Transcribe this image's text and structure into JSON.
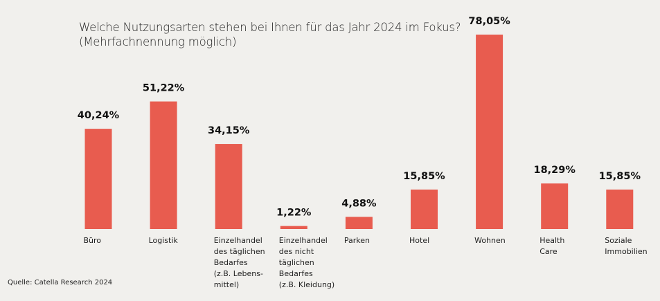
{
  "title": {
    "line1": "Welche Nutzungsarten stehen bei Ihnen für das Jahr 2024 im Fokus?",
    "line2": "(Mehrfachnennung möglich)"
  },
  "source": "Quelle: Catella Research 2024",
  "colors": {
    "bar": "#e85c4f",
    "background": "#f1f0ed",
    "text": "#111111"
  },
  "chart_data": {
    "type": "bar",
    "title": "Welche Nutzungsarten stehen bei Ihnen für das Jahr 2024 im Fokus? (Mehrfachnennung möglich)",
    "xlabel": "",
    "ylabel": "",
    "ylim": [
      0,
      80
    ],
    "grid": false,
    "legend": "none",
    "categories": [
      [
        "Büro"
      ],
      [
        "Logistik"
      ],
      [
        "Einzelhandel",
        "des täglichen",
        "Bedarfes",
        "(z.B. Lebens-",
        "mittel)"
      ],
      [
        "Einzelhandel",
        "des nicht",
        "täglichen",
        "Bedarfes",
        "(z.B. Kleidung)"
      ],
      [
        "Parken"
      ],
      [
        "Hotel"
      ],
      [
        "Wohnen"
      ],
      [
        "Health",
        "Care"
      ],
      [
        "Soziale",
        "Immobilien"
      ]
    ],
    "values": [
      40.24,
      51.22,
      34.15,
      1.22,
      4.88,
      15.85,
      78.05,
      18.29,
      15.85
    ],
    "value_labels": [
      "40,24%",
      "51,22%",
      "34,15%",
      "1,22%",
      "4,88%",
      "15,85%",
      "78,05%",
      "18,29%",
      "15,85%"
    ]
  }
}
